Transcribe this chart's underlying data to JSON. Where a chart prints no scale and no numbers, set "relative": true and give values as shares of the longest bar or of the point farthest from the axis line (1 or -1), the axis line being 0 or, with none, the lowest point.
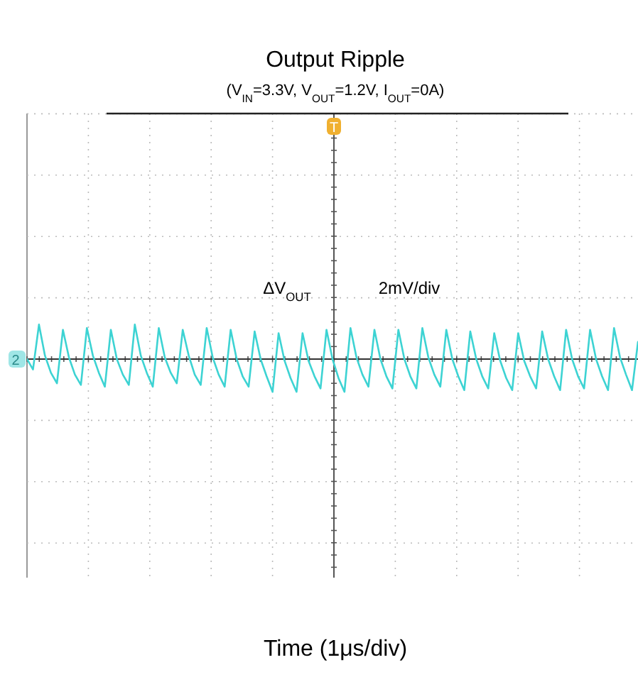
{
  "chart_data": {
    "type": "line",
    "title": "Output Ripple",
    "subtitle": "(V$_{IN}$=3.3V, V$_{OUT}$=1.2V, I$_{OUT}$=0A)",
    "annotations": [
      "ΔV$_{OUT}$",
      "2mV/div",
      "2",
      "T",
      "Time (1μs/div)"
    ],
    "relative": true,
    "grid": true,
    "legend": false,
    "marker": "none",
    "line_style": "solid",
    "categories": [
      null,
      null,
      null,
      null,
      null,
      null,
      null,
      null,
      null,
      null,
      null,
      null,
      null,
      null,
      null,
      null,
      null,
      null,
      null,
      null,
      null,
      null,
      null,
      null,
      null,
      null,
      null,
      null,
      null,
      null,
      null,
      null,
      null,
      null,
      null,
      null,
      null,
      null,
      null,
      null,
      null,
      null,
      null,
      null,
      null,
      null,
      null,
      null,
      null,
      null,
      null,
      null,
      null,
      null,
      null,
      null,
      null,
      null,
      null,
      null,
      null,
      null,
      null,
      null,
      null,
      null,
      null,
      null,
      null,
      null,
      null,
      null,
      null,
      null,
      null,
      null,
      null,
      null,
      null,
      null,
      null,
      null,
      null,
      null,
      null,
      null,
      null,
      null,
      null,
      null,
      null,
      null,
      null,
      null,
      null,
      null,
      null,
      null,
      null,
      null,
      null,
      null,
      null
    ],
    "series": [
      {
        "color": "#3dd3d3",
        "values": [
          0,
          -0.3,
          1.0,
          0.1,
          -0.4,
          -0.7,
          0.85,
          0.05,
          -0.45,
          -0.75,
          0.9,
          0.1,
          -0.4,
          -0.8,
          0.85,
          0.0,
          -0.45,
          -0.75,
          1.0,
          0.1,
          -0.4,
          -0.8,
          0.9,
          0.05,
          -0.4,
          -0.7,
          0.85,
          0.1,
          -0.45,
          -0.75,
          0.9,
          0.05,
          -0.45,
          -0.8,
          0.85,
          0.0,
          -0.5,
          -0.8,
          0.8,
          0.0,
          -0.5,
          -0.95,
          0.75,
          -0.05,
          -0.55,
          -0.95,
          0.75,
          -0.05,
          -0.5,
          -0.85,
          0.85,
          0.0,
          -0.55,
          -0.95,
          0.9,
          0.05,
          -0.45,
          -0.8,
          0.85,
          0.0,
          -0.5,
          -0.85,
          0.85,
          0.0,
          -0.5,
          -0.85,
          0.9,
          0.05,
          -0.45,
          -0.8,
          0.85,
          0.0,
          -0.5,
          -0.9,
          0.8,
          0.0,
          -0.5,
          -0.85,
          0.75,
          -0.05,
          -0.55,
          -0.9,
          0.75,
          -0.05,
          -0.5,
          -0.85,
          0.8,
          0.0,
          -0.5,
          -0.9,
          0.85,
          0.0,
          -0.5,
          -0.85,
          0.85,
          0.0,
          -0.5,
          -0.9,
          0.9,
          0.05,
          -0.45,
          -0.9,
          0.5
        ]
      }
    ]
  }
}
